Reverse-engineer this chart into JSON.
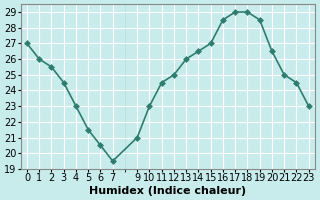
{
  "x": [
    0,
    1,
    2,
    3,
    4,
    5,
    6,
    7,
    9,
    10,
    11,
    12,
    13,
    14,
    15,
    16,
    17,
    18,
    19,
    20,
    21,
    22,
    23
  ],
  "y": [
    27,
    26,
    25.5,
    24.5,
    23,
    21.5,
    20.5,
    19.5,
    21,
    23,
    24.5,
    25,
    26,
    26.5,
    27,
    28.5,
    29,
    29,
    28.5,
    26.5,
    25,
    24.5,
    23
  ],
  "line_color": "#2e7d6e",
  "marker": "D",
  "marker_size": 3,
  "bg_color": "#c8ecec",
  "grid_color_major": "#ffffff",
  "grid_color_minor": "#b0d8d8",
  "xlabel": "Humidex (Indice chaleur)",
  "ylim": [
    19,
    29.5
  ],
  "xlim": [
    -0.5,
    23.5
  ],
  "yticks": [
    19,
    20,
    21,
    22,
    23,
    24,
    25,
    26,
    27,
    28,
    29
  ],
  "xticks": [
    0,
    1,
    2,
    3,
    4,
    5,
    6,
    7,
    9,
    10,
    11,
    12,
    13,
    14,
    15,
    16,
    17,
    18,
    19,
    20,
    21,
    22,
    23
  ],
  "xtick_labels": [
    "0",
    "1",
    "2",
    "3",
    "4",
    "5",
    "6",
    "7",
    "9",
    "10",
    "11",
    "12",
    "13",
    "14",
    "15",
    "16",
    "17",
    "18",
    "19",
    "20",
    "21",
    "22",
    "23"
  ],
  "xlabel_fontsize": 8,
  "tick_fontsize": 7,
  "line_width": 1.2
}
